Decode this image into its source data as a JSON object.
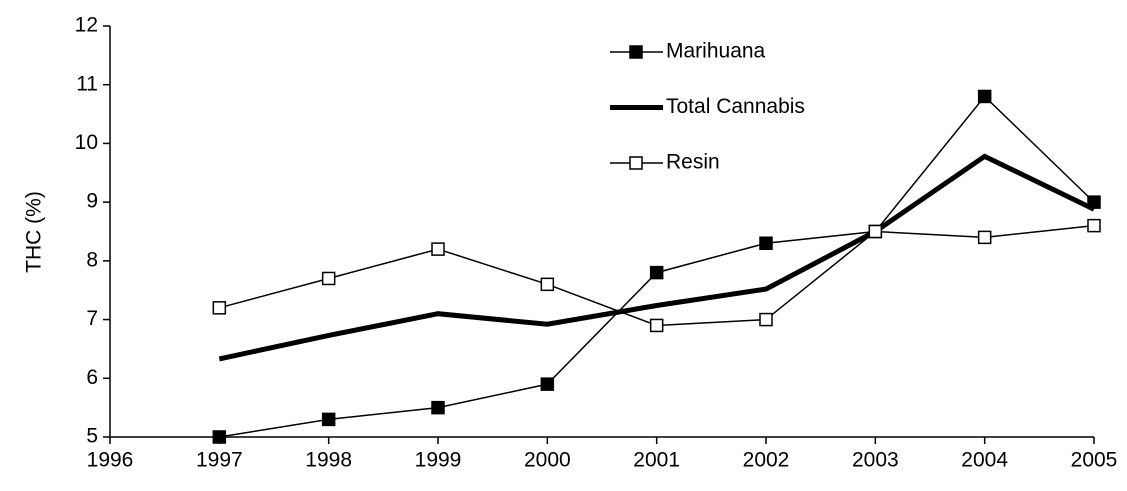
{
  "chart_data": {
    "type": "line",
    "y_label": "THC (%)",
    "x": [
      1997,
      1998,
      1999,
      2000,
      2001,
      2002,
      2003,
      2004,
      2005
    ],
    "series": [
      {
        "name": "Marihuana",
        "color": "#000000",
        "marker": "filled-square",
        "linewidth": 1.5,
        "values": [
          5.0,
          5.3,
          5.5,
          5.9,
          7.8,
          8.3,
          8.5,
          10.8,
          9.0
        ]
      },
      {
        "name": "Total Cannabis",
        "color": "#000000",
        "marker": "none",
        "linewidth": 5,
        "values": [
          6.33,
          6.73,
          7.1,
          6.92,
          7.24,
          7.52,
          8.5,
          9.78,
          8.88
        ]
      },
      {
        "name": "Resin",
        "color": "#000000",
        "marker": "open-square",
        "linewidth": 1.5,
        "values": [
          7.2,
          7.7,
          8.2,
          7.6,
          6.9,
          7.0,
          8.5,
          8.4,
          8.6
        ]
      }
    ],
    "xlim": [
      1996,
      2005
    ],
    "xticks": [
      1996,
      1997,
      1998,
      1999,
      2000,
      2001,
      2002,
      2003,
      2004,
      2005
    ],
    "ylim": [
      5,
      12
    ],
    "yticks": [
      5,
      6,
      7,
      8,
      9,
      10,
      11,
      12
    ],
    "grid": false,
    "legend": "upper center"
  }
}
